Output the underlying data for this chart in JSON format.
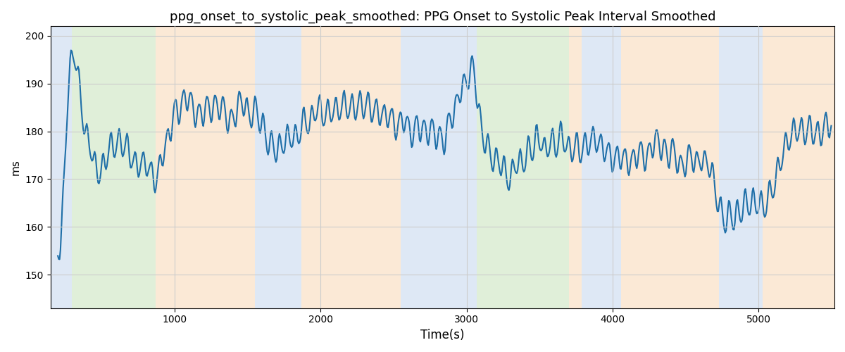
{
  "title": "ppg_onset_to_systolic_peak_smoothed: PPG Onset to Systolic Peak Interval Smoothed",
  "xlabel": "Time(s)",
  "ylabel": "ms",
  "ylim": [
    143,
    202
  ],
  "xlim": [
    150,
    5520
  ],
  "line_color": "#1f6fa8",
  "line_width": 1.5,
  "bg_regions": [
    {
      "xstart": 150,
      "xend": 295,
      "color": "#aec6e8",
      "alpha": 0.4
    },
    {
      "xstart": 295,
      "xend": 870,
      "color": "#b2d9a0",
      "alpha": 0.4
    },
    {
      "xstart": 870,
      "xend": 1550,
      "color": "#f5c99a",
      "alpha": 0.4
    },
    {
      "xstart": 1550,
      "xend": 1870,
      "color": "#aec6e8",
      "alpha": 0.4
    },
    {
      "xstart": 1870,
      "xend": 2550,
      "color": "#f5c99a",
      "alpha": 0.4
    },
    {
      "xstart": 2550,
      "xend": 2990,
      "color": "#aec6e8",
      "alpha": 0.4
    },
    {
      "xstart": 2990,
      "xend": 3070,
      "color": "#aec6e8",
      "alpha": 0.4
    },
    {
      "xstart": 3070,
      "xend": 3700,
      "color": "#b2d9a0",
      "alpha": 0.4
    },
    {
      "xstart": 3700,
      "xend": 3790,
      "color": "#f5c99a",
      "alpha": 0.4
    },
    {
      "xstart": 3790,
      "xend": 4060,
      "color": "#aec6e8",
      "alpha": 0.4
    },
    {
      "xstart": 4060,
      "xend": 4730,
      "color": "#f5c99a",
      "alpha": 0.4
    },
    {
      "xstart": 4730,
      "xend": 5030,
      "color": "#aec6e8",
      "alpha": 0.4
    },
    {
      "xstart": 5030,
      "xend": 5200,
      "color": "#f5c99a",
      "alpha": 0.4
    },
    {
      "xstart": 5200,
      "xend": 5520,
      "color": "#f5c99a",
      "alpha": 0.4
    }
  ],
  "grid_color": "#cccccc",
  "title_fontsize": 13
}
